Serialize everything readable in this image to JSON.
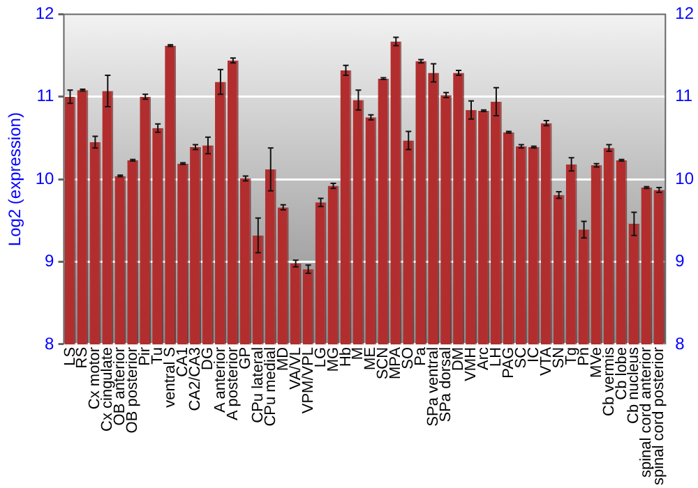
{
  "chart_data": {
    "type": "bar",
    "ylabel": "Log2 (expression)",
    "categories": [
      "LS",
      "RS",
      "Cx motor",
      "Cx cingulate",
      "OB anterior",
      "OB posterior",
      "Pir",
      "Tu",
      "ventral S",
      "CA1",
      "CA2/CA3",
      "DG",
      "A anterior",
      "A posterior",
      "GP",
      "CPu lateral",
      "CPu medial",
      "MD",
      "VA/VL",
      "VPM/VPL",
      "LG",
      "MG",
      "Hb",
      "M",
      "ME",
      "SCN",
      "MPA",
      "SO",
      "Pa",
      "SPa ventral",
      "SPa dorsal",
      "DM",
      "VMH",
      "Arc",
      "LH",
      "PAG",
      "SC",
      "IC",
      "VTA",
      "SN",
      "Tg",
      "Pn",
      "MVe",
      "Cb vermis",
      "Cb lobe",
      "Cb nucleus",
      "spinal cord anterior",
      "spinal cord posterior"
    ],
    "values": [
      11.0,
      11.08,
      10.45,
      11.07,
      10.04,
      10.23,
      11.0,
      10.62,
      11.62,
      10.19,
      10.39,
      10.41,
      11.18,
      11.44,
      10.01,
      9.32,
      10.12,
      9.66,
      8.98,
      8.91,
      9.72,
      9.92,
      11.32,
      10.96,
      10.75,
      11.22,
      11.67,
      10.47,
      11.43,
      11.29,
      11.02,
      11.29,
      10.84,
      10.83,
      10.94,
      10.57,
      10.4,
      10.39,
      10.68,
      9.81,
      10.18,
      9.39,
      10.17,
      10.38,
      10.23,
      9.46,
      9.9,
      9.87
    ],
    "errors": [
      0.08,
      0.01,
      0.07,
      0.19,
      0.01,
      0.01,
      0.03,
      0.05,
      0.01,
      0.01,
      0.03,
      0.1,
      0.15,
      0.03,
      0.03,
      0.21,
      0.26,
      0.03,
      0.04,
      0.05,
      0.05,
      0.03,
      0.06,
      0.12,
      0.03,
      0.01,
      0.05,
      0.11,
      0.02,
      0.11,
      0.03,
      0.03,
      0.11,
      0.01,
      0.17,
      0.01,
      0.02,
      0.01,
      0.03,
      0.04,
      0.08,
      0.1,
      0.02,
      0.04,
      0.01,
      0.14,
      0.01,
      0.03
    ],
    "color": "#b22e2e",
    "ylim": [
      8,
      12
    ],
    "yticks": [
      8,
      9,
      10,
      11,
      12
    ],
    "y2lim": [
      8,
      12
    ],
    "y2ticks": [
      8,
      9,
      10,
      11,
      12
    ],
    "grid": "y"
  }
}
